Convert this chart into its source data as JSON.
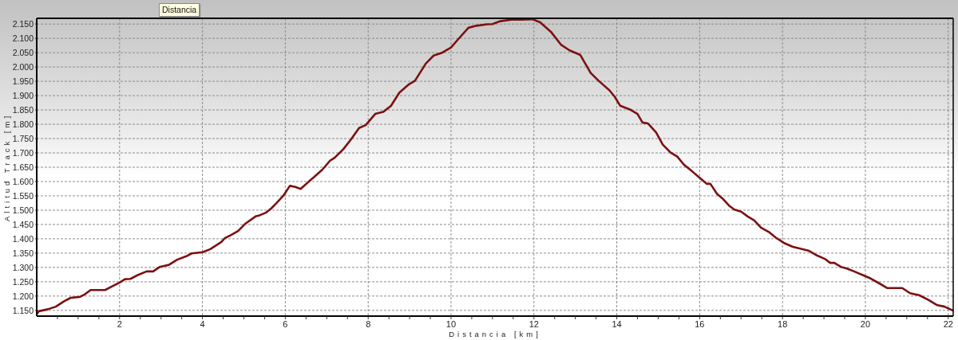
{
  "chart_data": {
    "type": "line",
    "xlabel": "Distancia [km]",
    "ylabel": "Altitud Track [m]",
    "annotations": [
      "Distancia"
    ],
    "x": [
      0,
      0.05,
      0.27,
      0.46,
      0.66,
      0.82,
      1.04,
      1.17,
      1.3,
      1.65,
      1.81,
      2.0,
      2.13,
      2.26,
      2.45,
      2.65,
      2.81,
      2.97,
      3.19,
      3.39,
      3.61,
      3.74,
      4.0,
      4.19,
      4.45,
      4.54,
      4.7,
      4.86,
      5.02,
      5.28,
      5.38,
      5.54,
      5.66,
      5.79,
      5.95,
      6.11,
      6.24,
      6.37,
      6.56,
      6.69,
      6.89,
      7.08,
      7.19,
      7.4,
      7.59,
      7.78,
      7.94,
      8.17,
      8.36,
      8.55,
      8.75,
      8.97,
      9.13,
      9.39,
      9.58,
      9.77,
      10.0,
      10.16,
      10.42,
      10.61,
      10.87,
      11.0,
      11.19,
      11.45,
      11.7,
      11.96,
      12.15,
      12.41,
      12.66,
      12.86,
      13.12,
      13.24,
      13.37,
      13.56,
      13.82,
      13.95,
      14.08,
      14.34,
      14.5,
      14.62,
      14.75,
      14.95,
      15.11,
      15.3,
      15.46,
      15.62,
      15.84,
      16.0,
      16.17,
      16.26,
      16.42,
      16.55,
      16.71,
      16.84,
      17.0,
      17.16,
      17.32,
      17.48,
      17.68,
      17.84,
      18.03,
      18.25,
      18.45,
      18.64,
      18.83,
      19.02,
      19.15,
      19.25,
      19.41,
      19.54,
      19.73,
      19.96,
      20.12,
      20.34,
      20.53,
      20.89,
      21.08,
      21.3,
      21.53,
      21.72,
      21.91,
      22.12
    ],
    "series": [
      {
        "color": "#7b1111",
        "values": [
          1137,
          1147,
          1154,
          1163,
          1182,
          1194,
          1197,
          1207,
          1221,
          1221,
          1233,
          1247,
          1259,
          1260,
          1274,
          1286,
          1286,
          1302,
          1309,
          1327,
          1339,
          1349,
          1353,
          1364,
          1388,
          1402,
          1414,
          1427,
          1451,
          1478,
          1482,
          1492,
          1506,
          1525,
          1550,
          1585,
          1581,
          1574,
          1599,
          1615,
          1641,
          1673,
          1683,
          1713,
          1748,
          1787,
          1797,
          1836,
          1843,
          1864,
          1910,
          1938,
          1952,
          2012,
          2040,
          2049,
          2068,
          2095,
          2137,
          2144,
          2149,
          2150,
          2160,
          2165,
          2165,
          2167,
          2156,
          2123,
          2077,
          2058,
          2042,
          2012,
          1979,
          1952,
          1919,
          1896,
          1865,
          1850,
          1836,
          1806,
          1803,
          1771,
          1729,
          1701,
          1687,
          1659,
          1633,
          1613,
          1592,
          1592,
          1557,
          1541,
          1516,
          1502,
          1495,
          1478,
          1464,
          1439,
          1423,
          1404,
          1386,
          1372,
          1365,
          1358,
          1342,
          1330,
          1316,
          1316,
          1302,
          1297,
          1286,
          1272,
          1262,
          1244,
          1228,
          1228,
          1210,
          1203,
          1186,
          1169,
          1163,
          1149
        ]
      }
    ],
    "xlim": [
      0,
      22.12
    ],
    "ylim": [
      1130,
      2170
    ],
    "xticks": [
      {
        "value": 0.5,
        "label": null
      },
      {
        "value": 1,
        "label": null
      },
      {
        "value": 1.5,
        "label": null
      },
      2,
      {
        "value": 2.5,
        "label": null
      },
      {
        "value": 3,
        "label": null
      },
      {
        "value": 3.5,
        "label": null
      },
      4,
      {
        "value": 4.5,
        "label": null
      },
      {
        "value": 5,
        "label": null
      },
      {
        "value": 5.5,
        "label": null
      },
      6,
      {
        "value": 6.5,
        "label": null
      },
      {
        "value": 7,
        "label": null
      },
      {
        "value": 7.5,
        "label": null
      },
      8,
      {
        "value": 8.5,
        "label": null
      },
      {
        "value": 9,
        "label": null
      },
      {
        "value": 9.5,
        "label": null
      },
      10,
      {
        "value": 10.5,
        "label": null
      },
      {
        "value": 11,
        "label": null
      },
      {
        "value": 11.5,
        "label": null
      },
      12,
      {
        "value": 12.5,
        "label": null
      },
      {
        "value": 13,
        "label": null
      },
      {
        "value": 13.5,
        "label": null
      },
      14,
      {
        "value": 14.5,
        "label": null
      },
      {
        "value": 15,
        "label": null
      },
      {
        "value": 15.5,
        "label": null
      },
      16,
      {
        "value": 16.5,
        "label": null
      },
      {
        "value": 17,
        "label": null
      },
      {
        "value": 17.5,
        "label": null
      },
      18,
      {
        "value": 18.5,
        "label": null
      },
      {
        "value": 19,
        "label": null
      },
      {
        "value": 19.5,
        "label": null
      },
      20,
      {
        "value": 20.5,
        "label": null
      },
      {
        "value": 21,
        "label": null
      },
      {
        "value": 21.5,
        "label": null
      },
      22
    ],
    "yticks": [
      {
        "value": 1150,
        "label": "1.150"
      },
      {
        "value": 1200,
        "label": "1.200"
      },
      {
        "value": 1250,
        "label": "1.250"
      },
      {
        "value": 1300,
        "label": "1.300"
      },
      {
        "value": 1350,
        "label": "1.350"
      },
      {
        "value": 1400,
        "label": "1.400"
      },
      {
        "value": 1450,
        "label": "1.450"
      },
      {
        "value": 1500,
        "label": "1.500"
      },
      {
        "value": 1550,
        "label": "1.550"
      },
      {
        "value": 1600,
        "label": "1.600"
      },
      {
        "value": 1650,
        "label": "1.650"
      },
      {
        "value": 1700,
        "label": "1.700"
      },
      {
        "value": 1750,
        "label": "1.750"
      },
      {
        "value": 1800,
        "label": "1.800"
      },
      {
        "value": 1850,
        "label": "1.850"
      },
      {
        "value": 1900,
        "label": "1.900"
      },
      {
        "value": 1950,
        "label": "1.950"
      },
      {
        "value": 2000,
        "label": "2.000"
      },
      {
        "value": 2050,
        "label": "2.050"
      },
      {
        "value": 2100,
        "label": "2.100"
      },
      {
        "value": 2150,
        "label": "2.150"
      }
    ],
    "grid": true
  }
}
